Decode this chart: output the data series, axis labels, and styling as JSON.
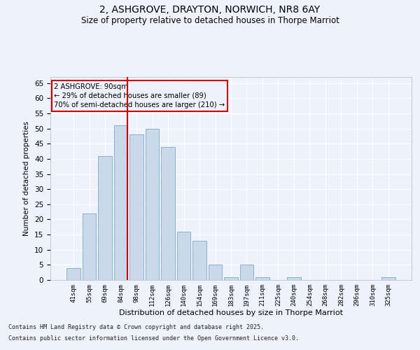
{
  "title1": "2, ASHGROVE, DRAYTON, NORWICH, NR8 6AY",
  "title2": "Size of property relative to detached houses in Thorpe Marriot",
  "xlabel": "Distribution of detached houses by size in Thorpe Marriot",
  "ylabel": "Number of detached properties",
  "categories": [
    "41sqm",
    "55sqm",
    "69sqm",
    "84sqm",
    "98sqm",
    "112sqm",
    "126sqm",
    "140sqm",
    "154sqm",
    "169sqm",
    "183sqm",
    "197sqm",
    "211sqm",
    "225sqm",
    "240sqm",
    "254sqm",
    "268sqm",
    "282sqm",
    "296sqm",
    "310sqm",
    "325sqm"
  ],
  "values": [
    4,
    22,
    41,
    51,
    48,
    50,
    44,
    16,
    13,
    5,
    1,
    5,
    1,
    0,
    1,
    0,
    0,
    0,
    0,
    0,
    1
  ],
  "bar_color": "#c9d9ea",
  "bar_edge_color": "#7aaac8",
  "vline_color": "#cc0000",
  "vline_pos": 3.5,
  "annotation_title": "2 ASHGROVE: 90sqm",
  "annotation_line2": "← 29% of detached houses are smaller (89)",
  "annotation_line3": "70% of semi-detached houses are larger (210) →",
  "annotation_box_color": "#cc0000",
  "ylim": [
    0,
    67
  ],
  "yticks": [
    0,
    5,
    10,
    15,
    20,
    25,
    30,
    35,
    40,
    45,
    50,
    55,
    60,
    65
  ],
  "bg_color": "#eef2fb",
  "grid_color": "#ffffff",
  "footer_line1": "Contains HM Land Registry data © Crown copyright and database right 2025.",
  "footer_line2": "Contains public sector information licensed under the Open Government Licence v3.0."
}
